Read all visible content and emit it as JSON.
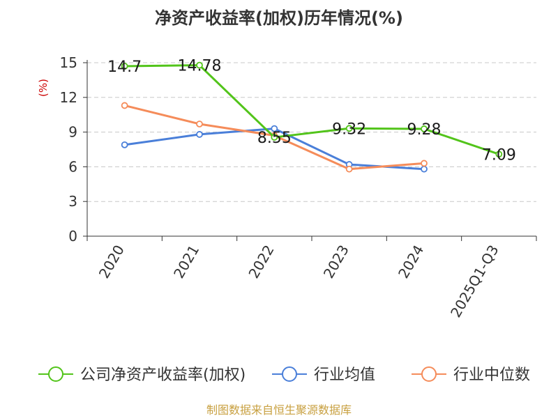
{
  "chart_data": {
    "type": "line",
    "title": "净资产收益率(加权)历年情况(%)",
    "ylabel": "(%)",
    "categories": [
      "2020",
      "2021",
      "2022",
      "2023",
      "2024",
      "2025Q1-Q3"
    ],
    "ylim": [
      0,
      15
    ],
    "yticks": [
      "0",
      "3",
      "6",
      "9",
      "12",
      "15"
    ],
    "grid": true,
    "legend_position": "bottom",
    "series": [
      {
        "name": "公司净资产收益率(加权)",
        "color": "#52c41a",
        "marker": "circle",
        "values": [
          14.7,
          14.78,
          8.55,
          9.32,
          9.28,
          7.09
        ],
        "labels": [
          "14.7",
          "14.78",
          "8.55",
          "9.32",
          "9.28",
          "7.09"
        ]
      },
      {
        "name": "行业均值",
        "color": "#4a7fd9",
        "marker": "circle",
        "values": [
          7.9,
          8.8,
          9.3,
          6.2,
          5.8,
          null
        ]
      },
      {
        "name": "行业中位数",
        "color": "#f58c5a",
        "marker": "circle",
        "values": [
          11.3,
          9.7,
          8.7,
          5.8,
          6.3,
          null
        ]
      }
    ]
  },
  "source": {
    "text": "制图数据来自恒生聚源数据库",
    "color": "#c8a040"
  },
  "colors": {
    "grid": "#c8c8c8",
    "axis": "#333333",
    "ylabel": "#cc0000"
  }
}
